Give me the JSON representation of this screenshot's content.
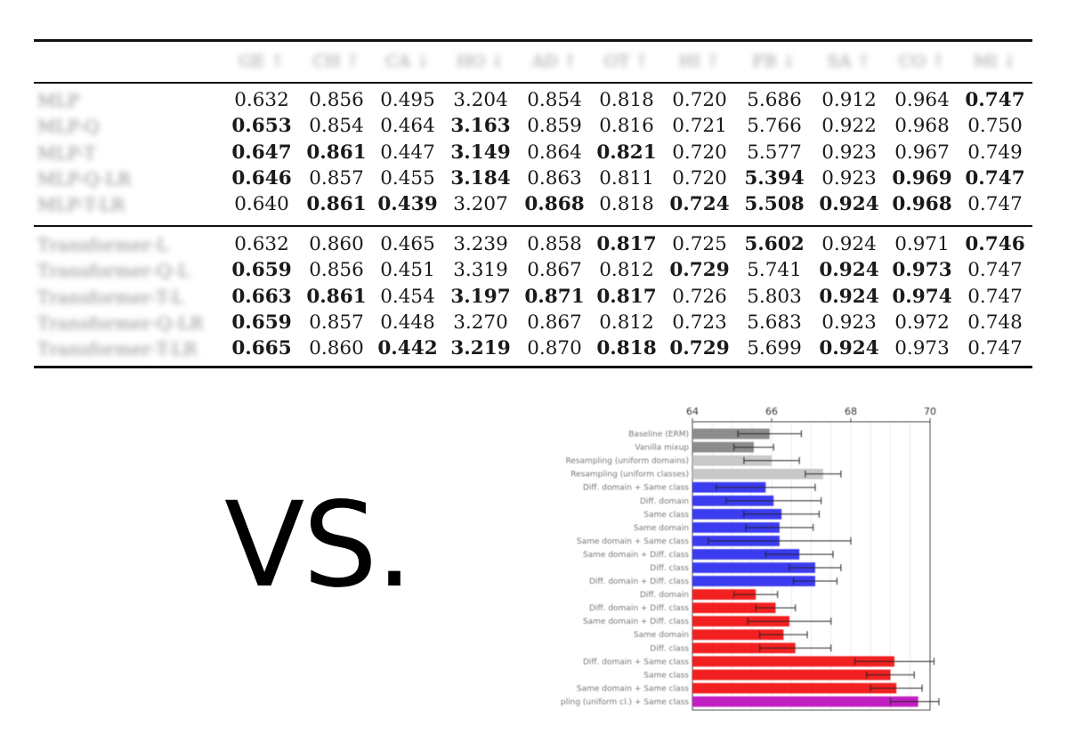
{
  "table": {
    "headers": [
      "GE ↑",
      "CH ↑",
      "CA ↓",
      "HO ↓",
      "AD ↑",
      "OT ↑",
      "HI ↑",
      "FB ↓",
      "SA ↑",
      "CO ↑",
      "MI ↓"
    ],
    "groups": [
      {
        "rows": [
          {
            "label": "MLP",
            "cells": [
              {
                "v": "0.632",
                "b": false
              },
              {
                "v": "0.856",
                "b": false
              },
              {
                "v": "0.495",
                "b": false
              },
              {
                "v": "3.204",
                "b": false
              },
              {
                "v": "0.854",
                "b": false
              },
              {
                "v": "0.818",
                "b": false
              },
              {
                "v": "0.720",
                "b": false
              },
              {
                "v": "5.686",
                "b": false
              },
              {
                "v": "0.912",
                "b": false
              },
              {
                "v": "0.964",
                "b": false
              },
              {
                "v": "0.747",
                "b": true
              }
            ]
          },
          {
            "label": "MLP-Q",
            "cells": [
              {
                "v": "0.653",
                "b": true
              },
              {
                "v": "0.854",
                "b": false
              },
              {
                "v": "0.464",
                "b": false
              },
              {
                "v": "3.163",
                "b": true
              },
              {
                "v": "0.859",
                "b": false
              },
              {
                "v": "0.816",
                "b": false
              },
              {
                "v": "0.721",
                "b": false
              },
              {
                "v": "5.766",
                "b": false
              },
              {
                "v": "0.922",
                "b": false
              },
              {
                "v": "0.968",
                "b": false
              },
              {
                "v": "0.750",
                "b": false
              }
            ]
          },
          {
            "label": "MLP-T",
            "cells": [
              {
                "v": "0.647",
                "b": true
              },
              {
                "v": "0.861",
                "b": true
              },
              {
                "v": "0.447",
                "b": false
              },
              {
                "v": "3.149",
                "b": true
              },
              {
                "v": "0.864",
                "b": false
              },
              {
                "v": "0.821",
                "b": true
              },
              {
                "v": "0.720",
                "b": false
              },
              {
                "v": "5.577",
                "b": false
              },
              {
                "v": "0.923",
                "b": false
              },
              {
                "v": "0.967",
                "b": false
              },
              {
                "v": "0.749",
                "b": false
              }
            ]
          },
          {
            "label": "MLP-Q-LR",
            "cells": [
              {
                "v": "0.646",
                "b": true
              },
              {
                "v": "0.857",
                "b": false
              },
              {
                "v": "0.455",
                "b": false
              },
              {
                "v": "3.184",
                "b": true
              },
              {
                "v": "0.863",
                "b": false
              },
              {
                "v": "0.811",
                "b": false
              },
              {
                "v": "0.720",
                "b": false
              },
              {
                "v": "5.394",
                "b": true
              },
              {
                "v": "0.923",
                "b": false
              },
              {
                "v": "0.969",
                "b": true
              },
              {
                "v": "0.747",
                "b": true
              }
            ]
          },
          {
            "label": "MLP-T-LR",
            "cells": [
              {
                "v": "0.640",
                "b": false
              },
              {
                "v": "0.861",
                "b": true
              },
              {
                "v": "0.439",
                "b": true
              },
              {
                "v": "3.207",
                "b": false
              },
              {
                "v": "0.868",
                "b": true
              },
              {
                "v": "0.818",
                "b": false
              },
              {
                "v": "0.724",
                "b": true
              },
              {
                "v": "5.508",
                "b": true
              },
              {
                "v": "0.924",
                "b": true
              },
              {
                "v": "0.968",
                "b": true
              },
              {
                "v": "0.747",
                "b": false
              }
            ]
          }
        ]
      },
      {
        "rows": [
          {
            "label": "Transformer-L",
            "cells": [
              {
                "v": "0.632",
                "b": false
              },
              {
                "v": "0.860",
                "b": false
              },
              {
                "v": "0.465",
                "b": false
              },
              {
                "v": "3.239",
                "b": false
              },
              {
                "v": "0.858",
                "b": false
              },
              {
                "v": "0.817",
                "b": true
              },
              {
                "v": "0.725",
                "b": false
              },
              {
                "v": "5.602",
                "b": true
              },
              {
                "v": "0.924",
                "b": false
              },
              {
                "v": "0.971",
                "b": false
              },
              {
                "v": "0.746",
                "b": true
              }
            ]
          },
          {
            "label": "Transformer-Q-L",
            "cells": [
              {
                "v": "0.659",
                "b": true
              },
              {
                "v": "0.856",
                "b": false
              },
              {
                "v": "0.451",
                "b": false
              },
              {
                "v": "3.319",
                "b": false
              },
              {
                "v": "0.867",
                "b": false
              },
              {
                "v": "0.812",
                "b": false
              },
              {
                "v": "0.729",
                "b": true
              },
              {
                "v": "5.741",
                "b": false
              },
              {
                "v": "0.924",
                "b": true
              },
              {
                "v": "0.973",
                "b": true
              },
              {
                "v": "0.747",
                "b": false
              }
            ]
          },
          {
            "label": "Transformer-T-L",
            "cells": [
              {
                "v": "0.663",
                "b": true
              },
              {
                "v": "0.861",
                "b": true
              },
              {
                "v": "0.454",
                "b": false
              },
              {
                "v": "3.197",
                "b": true
              },
              {
                "v": "0.871",
                "b": true
              },
              {
                "v": "0.817",
                "b": true
              },
              {
                "v": "0.726",
                "b": false
              },
              {
                "v": "5.803",
                "b": false
              },
              {
                "v": "0.924",
                "b": true
              },
              {
                "v": "0.974",
                "b": true
              },
              {
                "v": "0.747",
                "b": false
              }
            ]
          },
          {
            "label": "Transformer-Q-LR",
            "cells": [
              {
                "v": "0.659",
                "b": true
              },
              {
                "v": "0.857",
                "b": false
              },
              {
                "v": "0.448",
                "b": false
              },
              {
                "v": "3.270",
                "b": false
              },
              {
                "v": "0.867",
                "b": false
              },
              {
                "v": "0.812",
                "b": false
              },
              {
                "v": "0.723",
                "b": false
              },
              {
                "v": "5.683",
                "b": false
              },
              {
                "v": "0.923",
                "b": false
              },
              {
                "v": "0.972",
                "b": false
              },
              {
                "v": "0.748",
                "b": false
              }
            ]
          },
          {
            "label": "Transformer-T-LR",
            "cells": [
              {
                "v": "0.665",
                "b": true
              },
              {
                "v": "0.860",
                "b": false
              },
              {
                "v": "0.442",
                "b": true
              },
              {
                "v": "3.219",
                "b": true
              },
              {
                "v": "0.870",
                "b": false
              },
              {
                "v": "0.818",
                "b": true
              },
              {
                "v": "0.729",
                "b": true
              },
              {
                "v": "5.699",
                "b": false
              },
              {
                "v": "0.924",
                "b": true
              },
              {
                "v": "0.973",
                "b": false
              },
              {
                "v": "0.747",
                "b": false
              }
            ]
          }
        ]
      }
    ]
  },
  "vs_text": "VS.",
  "chart_data": {
    "type": "bar",
    "orientation": "horizontal",
    "xlim": [
      64,
      70
    ],
    "xticks": [
      64,
      66,
      68,
      70
    ],
    "grid": true,
    "categories": [
      "Baseline (ERM)",
      "Vanilla mixup",
      "Resampling (uniform domains)",
      "Resampling (uniform classes)",
      "Diff. domain + Same class",
      "Diff. domain",
      "Same class",
      "Same domain",
      "Same domain + Same class",
      "Same domain + Diff. class",
      "Diff. class",
      "Diff. domain + Diff. class",
      "Diff. domain",
      "Diff. domain + Diff. class",
      "Same domain + Diff. class",
      "Same domain",
      "Diff. class",
      "Diff. domain + Same class",
      "Same class",
      "Same domain + Same class",
      "pling (uniform cl.) + Same class"
    ],
    "values": [
      65.95,
      65.55,
      66.0,
      67.3,
      65.85,
      66.05,
      66.25,
      66.2,
      66.2,
      66.7,
      67.1,
      67.1,
      65.6,
      66.1,
      66.45,
      66.3,
      66.6,
      69.1,
      69.0,
      69.15,
      69.7
    ],
    "errors": [
      0.8,
      0.5,
      0.7,
      0.45,
      1.25,
      1.2,
      0.95,
      0.85,
      1.8,
      0.85,
      0.65,
      0.55,
      0.55,
      0.5,
      1.05,
      0.6,
      0.9,
      1.0,
      0.6,
      0.65,
      0.7
    ],
    "colors": [
      "#8c8c8c",
      "#8c8c8c",
      "#c8c8c8",
      "#c8c8c8",
      "#3b3bf0",
      "#3b3bf0",
      "#3b3bf0",
      "#3b3bf0",
      "#3b3bf0",
      "#3b3bf0",
      "#3b3bf0",
      "#3b3bf0",
      "#f22020",
      "#f22020",
      "#f22020",
      "#f22020",
      "#f22020",
      "#f22020",
      "#f22020",
      "#f22020",
      "#c21fc2"
    ]
  }
}
